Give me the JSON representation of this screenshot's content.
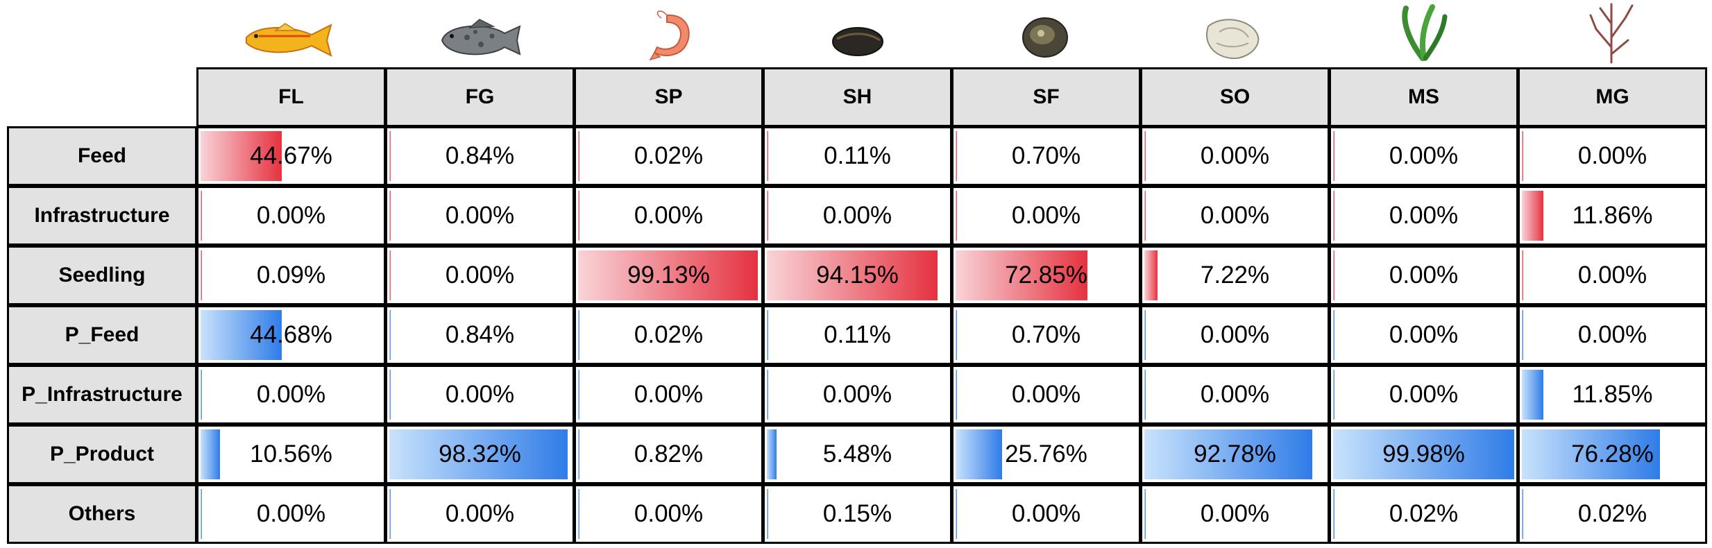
{
  "chart_data": {
    "type": "table",
    "columns": [
      "FL",
      "FG",
      "SP",
      "SH",
      "SF",
      "SO",
      "MS",
      "MG"
    ],
    "column_icons": [
      "yellow-fish-icon",
      "grouper-fish-icon",
      "shrimp-icon",
      "mussel-icon",
      "abalone-icon",
      "oyster-icon",
      "green-seaweed-icon",
      "red-seaweed-icon"
    ],
    "rows": [
      {
        "label": "Feed",
        "color": "red",
        "values": [
          44.67,
          0.84,
          0.02,
          0.11,
          0.7,
          0.0,
          0.0,
          0.0
        ]
      },
      {
        "label": "Infrastructure",
        "color": "red",
        "values": [
          0.0,
          0.0,
          0.0,
          0.0,
          0.0,
          0.0,
          0.0,
          11.86
        ]
      },
      {
        "label": "Seedling",
        "color": "red",
        "values": [
          0.09,
          0.0,
          99.13,
          94.15,
          72.85,
          7.22,
          0.0,
          0.0
        ]
      },
      {
        "label": "P_Feed",
        "color": "blue",
        "values": [
          44.68,
          0.84,
          0.02,
          0.11,
          0.7,
          0.0,
          0.0,
          0.0
        ]
      },
      {
        "label": "P_Infrastructure",
        "color": "blue",
        "values": [
          0.0,
          0.0,
          0.0,
          0.0,
          0.0,
          0.0,
          0.0,
          11.85
        ]
      },
      {
        "label": "P_Product",
        "color": "blue",
        "values": [
          10.56,
          98.32,
          0.82,
          5.48,
          25.76,
          92.78,
          99.98,
          76.28
        ]
      },
      {
        "label": "Others",
        "color": "blue",
        "values": [
          0.0,
          0.0,
          0.0,
          0.15,
          0.0,
          0.0,
          0.02,
          0.02
        ]
      }
    ],
    "value_suffix": "%",
    "value_range": [
      0,
      100
    ],
    "colors": {
      "red_start": "#f9d3d8",
      "red_end": "#e5323f",
      "blue_start": "#c8e2fc",
      "blue_end": "#2f7ce8",
      "header_bg": "#e2e2e2"
    }
  }
}
